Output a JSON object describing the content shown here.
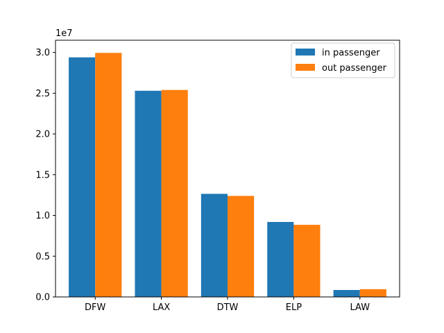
{
  "chart_data": {
    "type": "bar",
    "categories": [
      "DFW",
      "LAX",
      "DTW",
      "ELP",
      "LAW"
    ],
    "series": [
      {
        "name": "in passenger",
        "color": "#1f77b4",
        "values": [
          29400000,
          25300000,
          12650000,
          9200000,
          850000
        ]
      },
      {
        "name": "out passenger",
        "color": "#ff7f0e",
        "values": [
          29950000,
          25400000,
          12400000,
          8850000,
          950000
        ]
      }
    ],
    "title": "",
    "xlabel": "",
    "ylabel": "",
    "y_offset_label": "1e7",
    "y_scale": 10000000,
    "ylim": [
      0,
      31500000
    ],
    "yticks": [
      0,
      5000000,
      10000000,
      15000000,
      20000000,
      25000000,
      30000000
    ],
    "ytick_labels": [
      "0.0",
      "0.5",
      "1.0",
      "1.5",
      "2.0",
      "2.5",
      "3.0"
    ],
    "grid": false,
    "legend_position": "top-right"
  }
}
